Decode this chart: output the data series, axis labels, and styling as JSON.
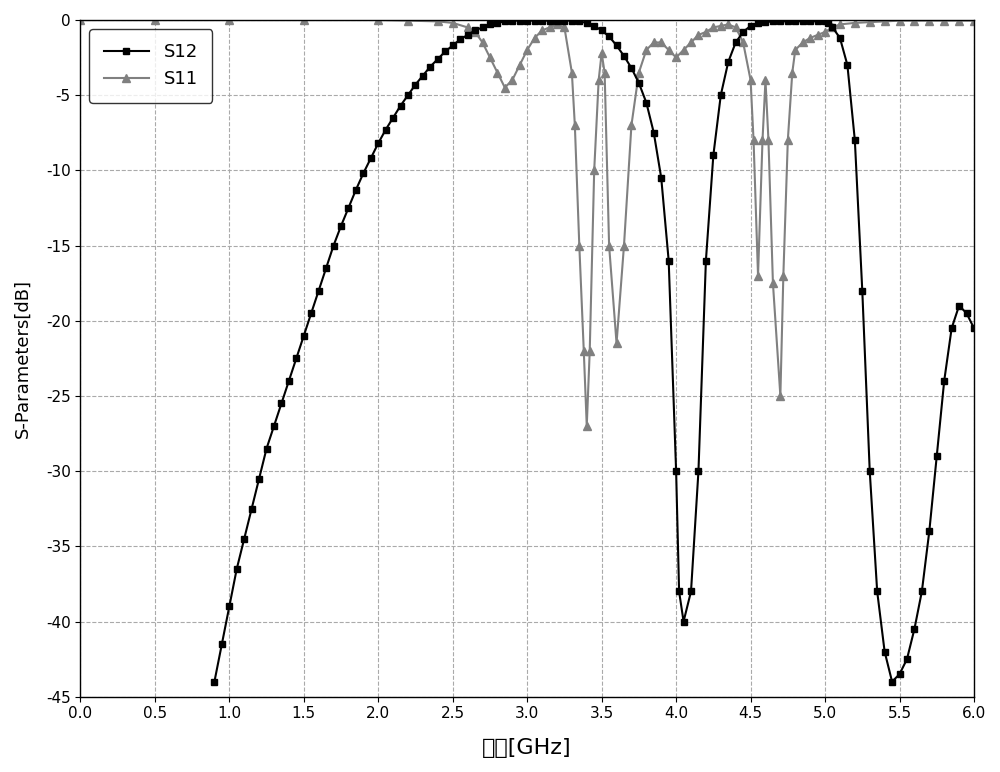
{
  "xlabel": "频率[GHz]",
  "ylabel": "S-Parameters[dB]",
  "xlim": [
    0.0,
    6.0
  ],
  "ylim": [
    -45,
    0
  ],
  "xticks": [
    0.0,
    0.5,
    1.0,
    1.5,
    2.0,
    2.5,
    3.0,
    3.5,
    4.0,
    4.5,
    5.0,
    5.5,
    6.0
  ],
  "yticks": [
    0,
    -5,
    -10,
    -15,
    -20,
    -25,
    -30,
    -35,
    -40,
    -45
  ],
  "s12_color": "#000000",
  "s11_color": "#808080",
  "background": "#ffffff",
  "s12_x": [
    0.9,
    0.95,
    1.0,
    1.05,
    1.1,
    1.15,
    1.2,
    1.25,
    1.3,
    1.35,
    1.4,
    1.45,
    1.5,
    1.55,
    1.6,
    1.65,
    1.7,
    1.75,
    1.8,
    1.85,
    1.9,
    1.95,
    2.0,
    2.05,
    2.1,
    2.15,
    2.2,
    2.25,
    2.3,
    2.35,
    2.4,
    2.45,
    2.5,
    2.55,
    2.6,
    2.65,
    2.7,
    2.75,
    2.8,
    2.85,
    2.9,
    2.95,
    3.0,
    3.05,
    3.1,
    3.15,
    3.2,
    3.25,
    3.3,
    3.35,
    3.4,
    3.45,
    3.5,
    3.55,
    3.6,
    3.65,
    3.7,
    3.75,
    3.8,
    3.85,
    3.9,
    3.95,
    4.0,
    4.02,
    4.05,
    4.1,
    4.15,
    4.2,
    4.25,
    4.3,
    4.35,
    4.4,
    4.45,
    4.5,
    4.55,
    4.6,
    4.65,
    4.7,
    4.75,
    4.8,
    4.85,
    4.9,
    4.95,
    5.0,
    5.02,
    5.05,
    5.1,
    5.15,
    5.2,
    5.25,
    5.3,
    5.35,
    5.4,
    5.45,
    5.5,
    5.55,
    5.6,
    5.65,
    5.7,
    5.75,
    5.8,
    5.85,
    5.9,
    5.95,
    6.0
  ],
  "s12_y": [
    -44.0,
    -41.5,
    -39.0,
    -36.5,
    -34.5,
    -32.5,
    -30.5,
    -28.5,
    -27.0,
    -25.5,
    -24.0,
    -22.5,
    -21.0,
    -19.5,
    -18.0,
    -16.5,
    -15.0,
    -13.7,
    -12.5,
    -11.3,
    -10.2,
    -9.2,
    -8.2,
    -7.3,
    -6.5,
    -5.7,
    -5.0,
    -4.3,
    -3.7,
    -3.1,
    -2.6,
    -2.1,
    -1.7,
    -1.3,
    -1.0,
    -0.7,
    -0.5,
    -0.3,
    -0.2,
    -0.1,
    -0.05,
    -0.05,
    -0.05,
    -0.05,
    -0.05,
    -0.05,
    -0.05,
    -0.05,
    -0.05,
    -0.1,
    -0.2,
    -0.4,
    -0.7,
    -1.1,
    -1.7,
    -2.4,
    -3.2,
    -4.2,
    -5.5,
    -7.5,
    -10.5,
    -16.0,
    -30.0,
    -38.0,
    -40.0,
    -38.0,
    -30.0,
    -16.0,
    -9.0,
    -5.0,
    -2.8,
    -1.5,
    -0.8,
    -0.4,
    -0.2,
    -0.15,
    -0.1,
    -0.1,
    -0.1,
    -0.1,
    -0.1,
    -0.1,
    -0.1,
    -0.1,
    -0.2,
    -0.5,
    -1.2,
    -3.0,
    -8.0,
    -18.0,
    -30.0,
    -38.0,
    -42.0,
    -44.0,
    -43.5,
    -42.5,
    -40.5,
    -38.0,
    -34.0,
    -29.0,
    -24.0,
    -20.5,
    -19.0,
    -19.5,
    -20.5
  ],
  "s11_x": [
    0.0,
    0.5,
    1.0,
    1.5,
    2.0,
    2.2,
    2.4,
    2.5,
    2.6,
    2.65,
    2.7,
    2.75,
    2.8,
    2.85,
    2.9,
    2.95,
    3.0,
    3.05,
    3.1,
    3.15,
    3.2,
    3.25,
    3.3,
    3.32,
    3.35,
    3.38,
    3.4,
    3.42,
    3.45,
    3.48,
    3.5,
    3.52,
    3.55,
    3.6,
    3.65,
    3.7,
    3.75,
    3.8,
    3.85,
    3.9,
    3.95,
    4.0,
    4.05,
    4.1,
    4.15,
    4.2,
    4.25,
    4.3,
    4.35,
    4.4,
    4.45,
    4.5,
    4.52,
    4.55,
    4.58,
    4.6,
    4.62,
    4.65,
    4.7,
    4.72,
    4.75,
    4.78,
    4.8,
    4.85,
    4.9,
    4.95,
    5.0,
    5.05,
    5.1,
    5.2,
    5.3,
    5.4,
    5.5,
    5.6,
    5.7,
    5.8,
    5.9,
    6.0
  ],
  "s11_y": [
    -0.01,
    -0.01,
    -0.01,
    -0.01,
    -0.01,
    -0.05,
    -0.1,
    -0.2,
    -0.5,
    -0.8,
    -1.5,
    -2.5,
    -3.5,
    -4.5,
    -4.0,
    -3.0,
    -2.0,
    -1.2,
    -0.7,
    -0.5,
    -0.3,
    -0.5,
    -3.5,
    -7.0,
    -15.0,
    -22.0,
    -27.0,
    -22.0,
    -10.0,
    -4.0,
    -2.2,
    -3.5,
    -15.0,
    -21.5,
    -15.0,
    -7.0,
    -3.5,
    -2.0,
    -1.5,
    -1.5,
    -2.0,
    -2.5,
    -2.0,
    -1.5,
    -1.0,
    -0.8,
    -0.5,
    -0.4,
    -0.3,
    -0.5,
    -1.5,
    -4.0,
    -8.0,
    -17.0,
    -8.0,
    -4.0,
    -8.0,
    -17.5,
    -25.0,
    -17.0,
    -8.0,
    -3.5,
    -2.0,
    -1.5,
    -1.2,
    -1.0,
    -0.8,
    -0.5,
    -0.3,
    -0.2,
    -0.15,
    -0.1,
    -0.05,
    -0.05,
    -0.05,
    -0.05,
    -0.05,
    -0.05
  ]
}
